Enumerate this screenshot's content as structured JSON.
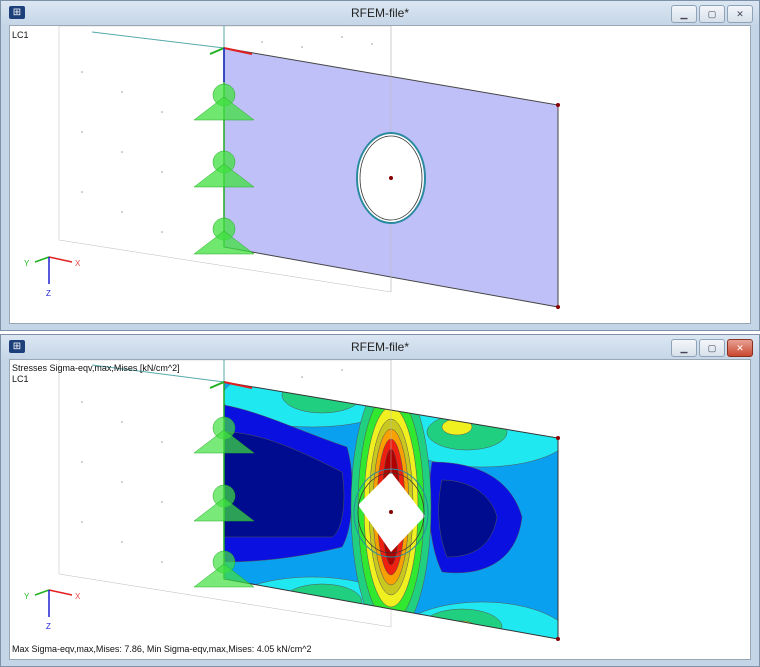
{
  "windows": [
    {
      "title": "RFEM-file*",
      "load_case": "LC1",
      "controls": [
        "minimize",
        "restore",
        "close"
      ]
    },
    {
      "title": "RFEM-file*",
      "result_label": "Stresses Sigma-eqv,max,Mises [kN/cm^2]",
      "load_case": "LC1",
      "summary": "Max Sigma-eqv,max,Mises: 7.86, Min Sigma-eqv,max,Mises: 4.05 kN/cm^2",
      "controls": [
        "minimize",
        "restore",
        "close"
      ]
    }
  ],
  "axes": {
    "x": "X",
    "y": "Y",
    "z": "Z"
  },
  "colors": {
    "plate": "#c0c0f8",
    "x_axis": "#e02020",
    "y_axis": "#20b020",
    "z_axis": "#2020d0",
    "support": "#40e040"
  },
  "icons": {
    "minimize": "minimize-icon",
    "restore": "restore-icon",
    "close": "close-icon"
  }
}
